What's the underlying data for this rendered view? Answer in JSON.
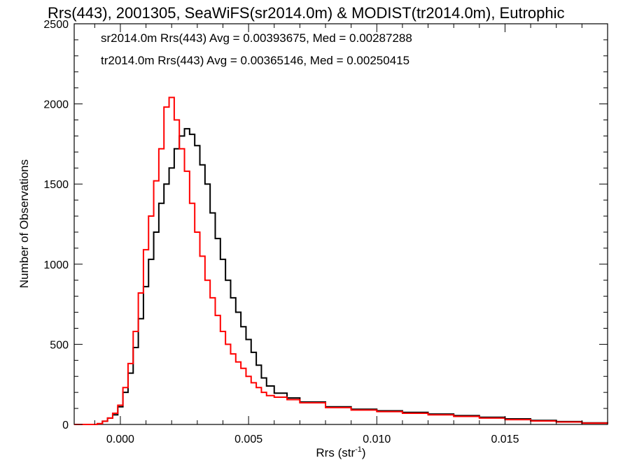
{
  "chart_data": {
    "type": "line",
    "title": "Rrs(443), 2001305, SeaWiFS(sr2014.0m) & MODIST(tr2014.0m), Eutrophic",
    "xlabel": "Rrs (str",
    "xlabel_sup": "-1",
    "xlabel_end": ")",
    "ylabel": "Number of Observations",
    "xlim": [
      -0.0018,
      0.019
    ],
    "ylim": [
      0,
      2500
    ],
    "x_ticks": [
      0.0,
      0.005,
      0.01,
      0.015
    ],
    "x_tick_labels": [
      "0.000",
      "0.005",
      "0.010",
      "0.015"
    ],
    "y_ticks": [
      0,
      500,
      1000,
      1500,
      2000,
      2500
    ],
    "y_tick_labels": [
      "0",
      "500",
      "1000",
      "1500",
      "2000",
      "2500"
    ],
    "legend_position": "top-left",
    "grid": false,
    "series": [
      {
        "name": "sr2014.0m Rrs(443) Avg = 0.00393675, Med = 0.00287288",
        "color": "#000000",
        "points": [
          [
            -0.0018,
            0
          ],
          [
            -0.0011,
            0
          ],
          [
            -0.0009,
            5
          ],
          [
            -0.0007,
            20
          ],
          [
            -0.0005,
            40
          ],
          [
            -0.0003,
            60
          ],
          [
            -0.0001,
            110
          ],
          [
            0.0001,
            200
          ],
          [
            0.0003,
            320
          ],
          [
            0.0005,
            480
          ],
          [
            0.0007,
            660
          ],
          [
            0.0009,
            860
          ],
          [
            0.0011,
            1030
          ],
          [
            0.0013,
            1200
          ],
          [
            0.0015,
            1380
          ],
          [
            0.0017,
            1500
          ],
          [
            0.0019,
            1600
          ],
          [
            0.0021,
            1720
          ],
          [
            0.0023,
            1800
          ],
          [
            0.0025,
            1845
          ],
          [
            0.0027,
            1810
          ],
          [
            0.0029,
            1740
          ],
          [
            0.0031,
            1620
          ],
          [
            0.0033,
            1500
          ],
          [
            0.0035,
            1320
          ],
          [
            0.0037,
            1160
          ],
          [
            0.0039,
            1030
          ],
          [
            0.0041,
            900
          ],
          [
            0.0043,
            790
          ],
          [
            0.0045,
            700
          ],
          [
            0.0047,
            610
          ],
          [
            0.0049,
            530
          ],
          [
            0.0051,
            450
          ],
          [
            0.0053,
            370
          ],
          [
            0.0055,
            290
          ],
          [
            0.0057,
            240
          ],
          [
            0.006,
            195
          ],
          [
            0.0065,
            165
          ],
          [
            0.007,
            140
          ],
          [
            0.008,
            110
          ],
          [
            0.009,
            95
          ],
          [
            0.01,
            85
          ],
          [
            0.011,
            75
          ],
          [
            0.012,
            65
          ],
          [
            0.013,
            55
          ],
          [
            0.014,
            45
          ],
          [
            0.015,
            35
          ],
          [
            0.016,
            25
          ],
          [
            0.017,
            18
          ],
          [
            0.018,
            10
          ],
          [
            0.019,
            5
          ]
        ]
      },
      {
        "name": "tr2014.0m Rrs(443) Avg = 0.00365146, Med = 0.00250415",
        "color": "#ff0000",
        "points": [
          [
            -0.0018,
            0
          ],
          [
            -0.0011,
            0
          ],
          [
            -0.0009,
            5
          ],
          [
            -0.0007,
            20
          ],
          [
            -0.0005,
            40
          ],
          [
            -0.0003,
            70
          ],
          [
            -0.0001,
            120
          ],
          [
            0.0001,
            230
          ],
          [
            0.0003,
            380
          ],
          [
            0.0005,
            580
          ],
          [
            0.0007,
            820
          ],
          [
            0.0009,
            1090
          ],
          [
            0.0011,
            1300
          ],
          [
            0.0013,
            1520
          ],
          [
            0.0015,
            1720
          ],
          [
            0.0017,
            1980
          ],
          [
            0.0019,
            2040
          ],
          [
            0.0021,
            1900
          ],
          [
            0.0023,
            1720
          ],
          [
            0.0025,
            1580
          ],
          [
            0.0027,
            1380
          ],
          [
            0.0029,
            1200
          ],
          [
            0.0031,
            1050
          ],
          [
            0.0033,
            900
          ],
          [
            0.0035,
            790
          ],
          [
            0.0037,
            680
          ],
          [
            0.0039,
            580
          ],
          [
            0.0041,
            500
          ],
          [
            0.0043,
            440
          ],
          [
            0.0045,
            390
          ],
          [
            0.0047,
            350
          ],
          [
            0.0049,
            300
          ],
          [
            0.0051,
            260
          ],
          [
            0.0053,
            230
          ],
          [
            0.0055,
            200
          ],
          [
            0.0057,
            180
          ],
          [
            0.006,
            170
          ],
          [
            0.0065,
            155
          ],
          [
            0.007,
            135
          ],
          [
            0.008,
            105
          ],
          [
            0.009,
            90
          ],
          [
            0.01,
            80
          ],
          [
            0.011,
            70
          ],
          [
            0.012,
            60
          ],
          [
            0.013,
            50
          ],
          [
            0.014,
            40
          ],
          [
            0.015,
            30
          ],
          [
            0.016,
            22
          ],
          [
            0.017,
            15
          ],
          [
            0.018,
            8
          ],
          [
            0.019,
            4
          ]
        ]
      }
    ]
  }
}
